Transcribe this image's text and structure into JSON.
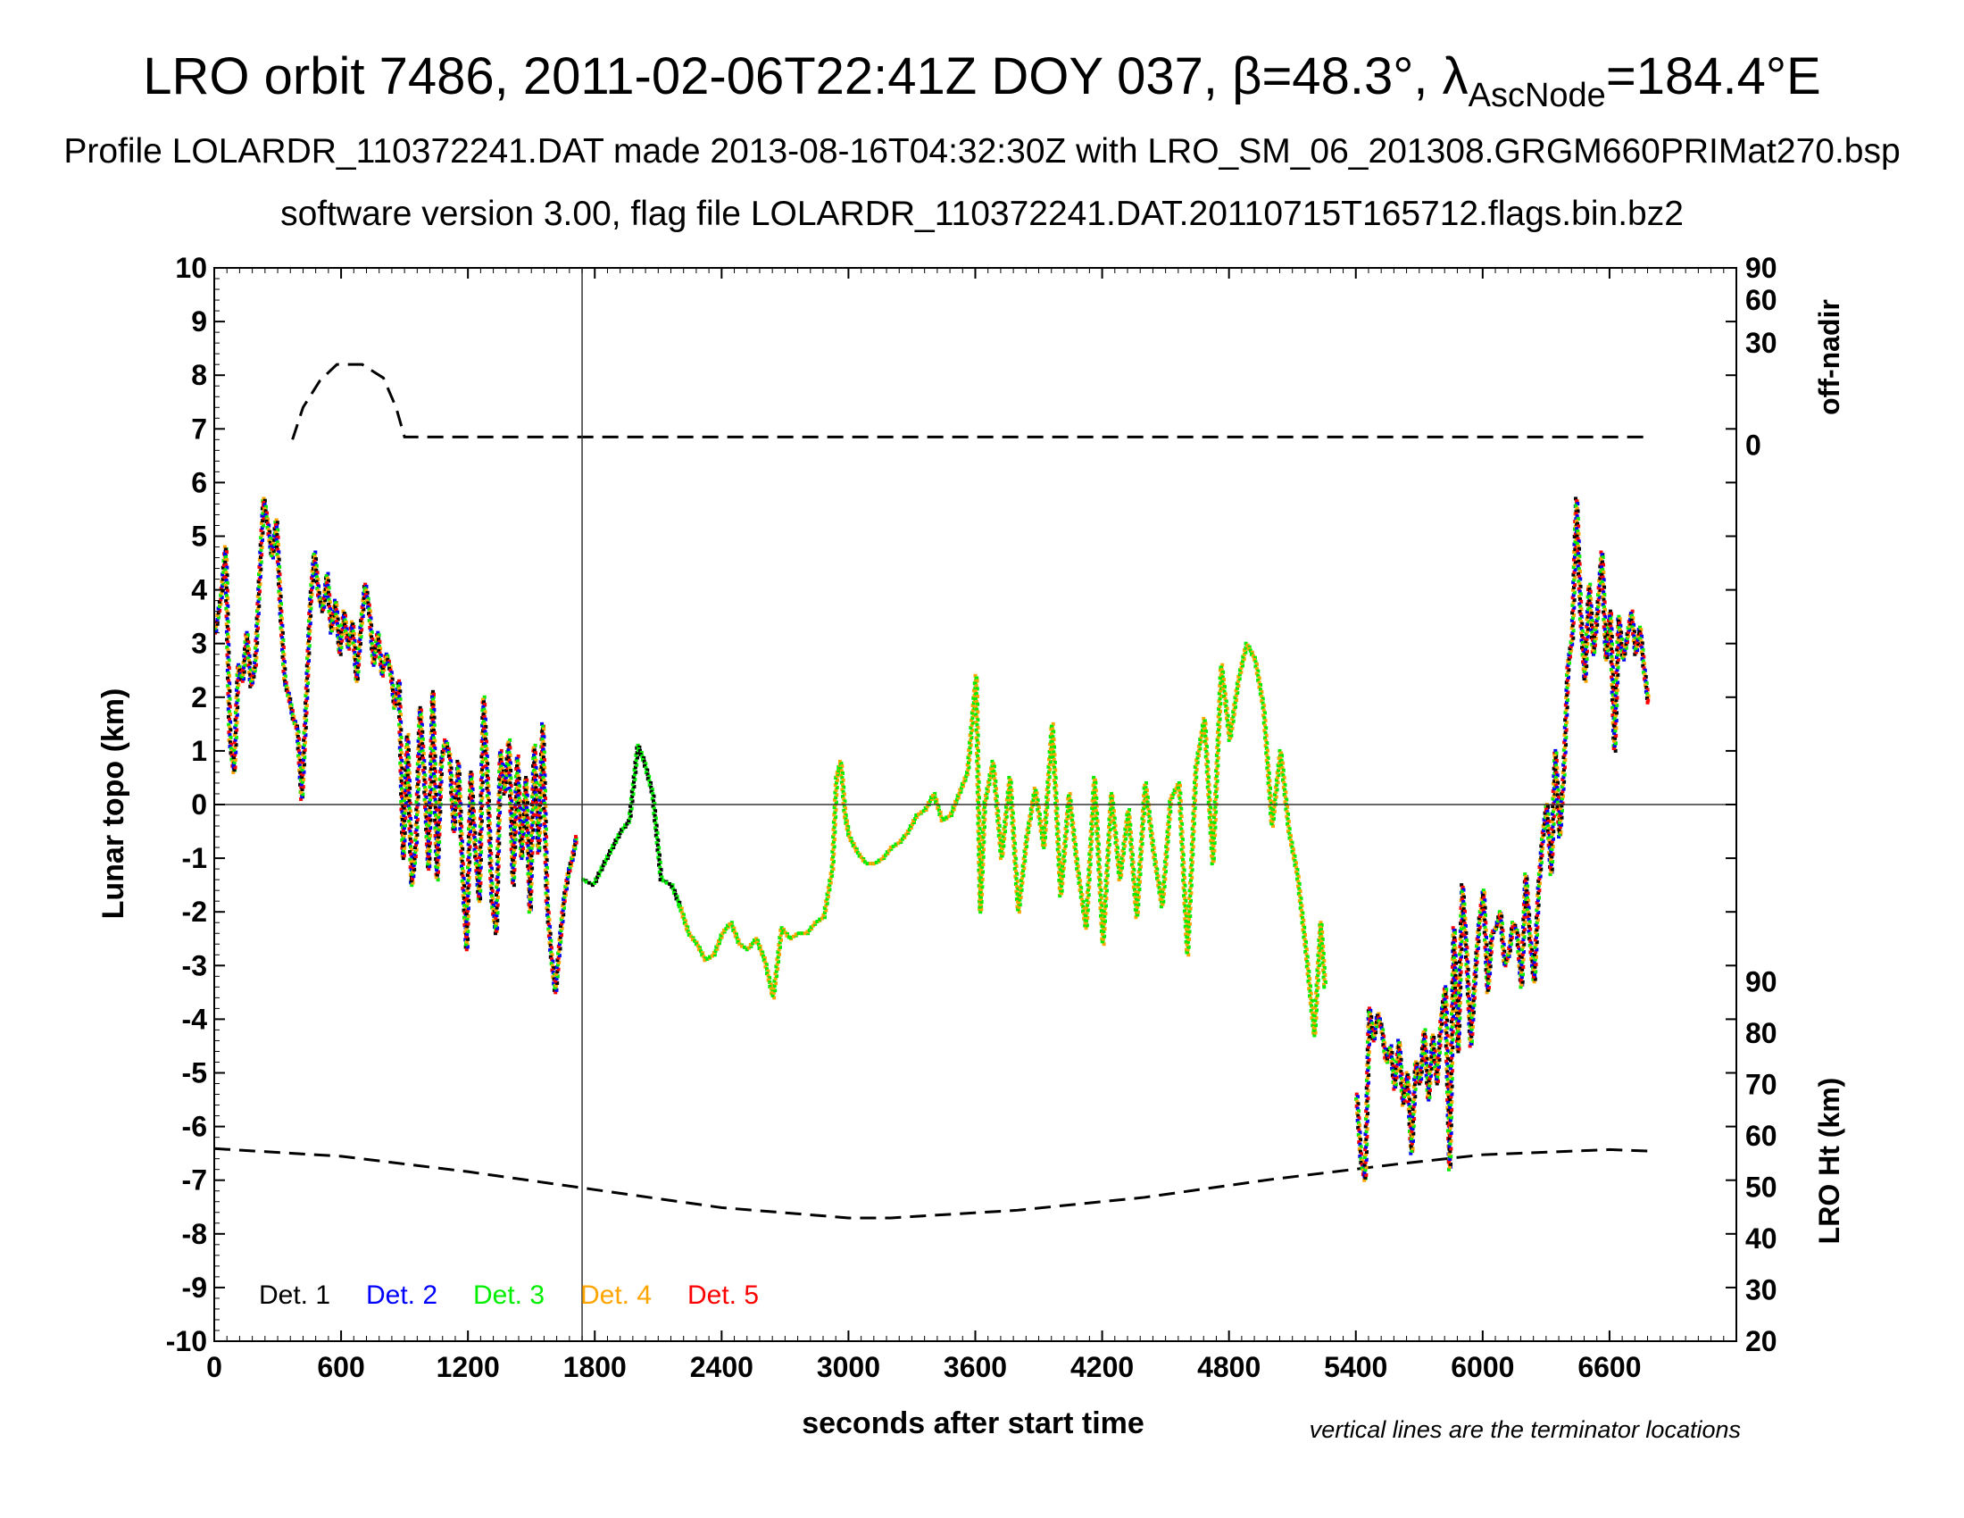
{
  "title": {
    "main_prefix": "LRO orbit 7486, 2011-02-06T22:41Z DOY 037, β=48.3°, λ",
    "main_subscript": "AscNode",
    "main_suffix": "=184.4°E",
    "line2": "Profile LOLARDR_110372241.DAT made 2013-08-16T04:32:30Z with LRO_SM_06_201308.GRGM660PRIMat270.bsp",
    "line3": "software version 3.00, flag file LOLARDR_110372241.DAT.20110715T165712.flags.bin.bz2"
  },
  "axes": {
    "xlabel": "seconds after start time",
    "ylabel_left": "Lunar topo (km)",
    "ylabel_right_top": "off-nadir",
    "ylabel_right_bottom": "LRO Ht (km)",
    "note": "vertical lines are the terminator locations"
  },
  "chart_data": {
    "type": "scatter",
    "xlim": [
      0,
      7200
    ],
    "ylim": [
      -10,
      10
    ],
    "x_ticks": [
      "0",
      "600",
      "1200",
      "1800",
      "2400",
      "3000",
      "3600",
      "4200",
      "4800",
      "5400",
      "6000",
      "6600"
    ],
    "y_ticks": [
      "10",
      "9",
      "8",
      "7",
      "6",
      "5",
      "4",
      "3",
      "2",
      "1",
      "0",
      "-1",
      "-2",
      "-3",
      "-4",
      "-5",
      "-6",
      "-7",
      "-8",
      "-9",
      "-10"
    ],
    "offnadir_ticks": [
      {
        "label": "90",
        "y": 10
      },
      {
        "label": "60",
        "y": 9.4
      },
      {
        "label": "30",
        "y": 8.6
      },
      {
        "label": "0",
        "y": 6.7
      }
    ],
    "ht_ticks": [
      "90",
      "80",
      "70",
      "60",
      "50",
      "40",
      "30",
      "20"
    ],
    "ht_range": [
      20,
      90
    ],
    "ht_y_range": [
      -10,
      -3.3
    ],
    "terminator_x": [
      1740
    ],
    "zero_line": 0,
    "legend_position": "bottom-left",
    "legend": [
      {
        "name": "Det. 1",
        "color": "#000000"
      },
      {
        "name": "Det. 2",
        "color": "#0000ff"
      },
      {
        "name": "Det. 3",
        "color": "#00ee00"
      },
      {
        "name": "Det. 4",
        "color": "#ffa500"
      },
      {
        "name": "Det. 5",
        "color": "#ff0000"
      }
    ],
    "offnadir_trace": [
      [
        370,
        6.8
      ],
      [
        420,
        7.4
      ],
      [
        500,
        7.9
      ],
      [
        580,
        8.2
      ],
      [
        700,
        8.2
      ],
      [
        800,
        7.95
      ],
      [
        860,
        7.4
      ],
      [
        900,
        6.85
      ],
      [
        6800,
        6.85
      ]
    ],
    "lro_ht_trace": [
      [
        0,
        57.5
      ],
      [
        600,
        56
      ],
      [
        1200,
        53
      ],
      [
        1800,
        49.5
      ],
      [
        2400,
        46
      ],
      [
        3000,
        44
      ],
      [
        3200,
        44
      ],
      [
        3800,
        45.5
      ],
      [
        4400,
        48
      ],
      [
        5000,
        51.5
      ],
      [
        5600,
        54.5
      ],
      [
        6000,
        56.3
      ],
      [
        6600,
        57.3
      ],
      [
        6800,
        57
      ]
    ],
    "topo_segments": [
      {
        "name": "main-dense",
        "colors": [
          "#ff0000",
          "#0000ff",
          "#00ee00",
          "#ffa500",
          "#000000"
        ],
        "values": [
          [
            0,
            3.2
          ],
          [
            30,
            3.9
          ],
          [
            50,
            4.8
          ],
          [
            70,
            1.2
          ],
          [
            90,
            0.6
          ],
          [
            110,
            2.6
          ],
          [
            130,
            2.3
          ],
          [
            150,
            3.2
          ],
          [
            170,
            2.2
          ],
          [
            190,
            2.6
          ],
          [
            210,
            4.2
          ],
          [
            230,
            5.7
          ],
          [
            250,
            5.2
          ],
          [
            270,
            4.6
          ],
          [
            290,
            5.3
          ],
          [
            310,
            3.6
          ],
          [
            330,
            2.3
          ],
          [
            350,
            2.0
          ],
          [
            370,
            1.6
          ],
          [
            390,
            1.4
          ],
          [
            410,
            0.1
          ],
          [
            430,
            1.8
          ],
          [
            450,
            3.7
          ],
          [
            470,
            4.7
          ],
          [
            490,
            3.9
          ],
          [
            510,
            3.6
          ],
          [
            530,
            4.3
          ],
          [
            550,
            3.2
          ],
          [
            570,
            3.8
          ],
          [
            590,
            2.8
          ],
          [
            610,
            3.6
          ],
          [
            630,
            2.9
          ],
          [
            650,
            3.4
          ],
          [
            670,
            2.3
          ],
          [
            690,
            3.3
          ],
          [
            710,
            4.1
          ],
          [
            730,
            3.6
          ],
          [
            750,
            2.6
          ],
          [
            770,
            3.2
          ],
          [
            790,
            2.4
          ],
          [
            810,
            2.8
          ],
          [
            830,
            2.5
          ],
          [
            850,
            1.8
          ],
          [
            870,
            2.3
          ],
          [
            890,
            -1.0
          ],
          [
            910,
            1.3
          ],
          [
            930,
            -1.5
          ],
          [
            950,
            -0.8
          ],
          [
            970,
            1.8
          ],
          [
            990,
            0.5
          ],
          [
            1010,
            -1.2
          ],
          [
            1030,
            2.1
          ],
          [
            1050,
            -1.4
          ],
          [
            1070,
            0.8
          ],
          [
            1090,
            1.2
          ],
          [
            1110,
            0.9
          ],
          [
            1130,
            -0.5
          ],
          [
            1150,
            0.8
          ],
          [
            1170,
            -1.2
          ],
          [
            1190,
            -2.7
          ],
          [
            1210,
            0.6
          ],
          [
            1230,
            -0.8
          ],
          [
            1250,
            -1.8
          ],
          [
            1270,
            2.0
          ],
          [
            1290,
            0.3
          ],
          [
            1310,
            -1.8
          ],
          [
            1330,
            -2.4
          ],
          [
            1350,
            1.0
          ],
          [
            1370,
            0.2
          ],
          [
            1390,
            1.2
          ],
          [
            1410,
            -1.5
          ],
          [
            1430,
            0.9
          ],
          [
            1450,
            -1.0
          ],
          [
            1470,
            0.5
          ],
          [
            1490,
            -2.0
          ],
          [
            1510,
            1.1
          ],
          [
            1530,
            -0.9
          ],
          [
            1550,
            1.5
          ],
          [
            1570,
            -1.8
          ],
          [
            1590,
            -2.8
          ],
          [
            1610,
            -3.5
          ],
          [
            1630,
            -2.6
          ],
          [
            1650,
            -1.8
          ],
          [
            1670,
            -1.3
          ],
          [
            1690,
            -1.0
          ],
          [
            1710,
            -0.6
          ]
        ]
      },
      {
        "name": "night",
        "colors": [
          "#00ee00",
          "#000000"
        ],
        "values": [
          [
            1740,
            -1.4
          ],
          [
            1790,
            -1.5
          ],
          [
            1840,
            -1.1
          ],
          [
            1880,
            -0.8
          ],
          [
            1920,
            -0.5
          ],
          [
            1960,
            -0.3
          ],
          [
            2000,
            1.1
          ],
          [
            2030,
            0.8
          ],
          [
            2070,
            0.2
          ],
          [
            2110,
            -1.4
          ],
          [
            2160,
            -1.5
          ],
          [
            2200,
            -1.9
          ]
        ]
      },
      {
        "name": "day-green",
        "colors": [
          "#00ee00",
          "#ffa500"
        ],
        "values": [
          [
            2200,
            -1.9
          ],
          [
            2240,
            -2.4
          ],
          [
            2280,
            -2.6
          ],
          [
            2320,
            -2.9
          ],
          [
            2360,
            -2.8
          ],
          [
            2400,
            -2.4
          ],
          [
            2440,
            -2.2
          ],
          [
            2480,
            -2.6
          ],
          [
            2520,
            -2.7
          ],
          [
            2560,
            -2.5
          ],
          [
            2600,
            -2.9
          ],
          [
            2640,
            -3.6
          ],
          [
            2680,
            -2.3
          ],
          [
            2720,
            -2.5
          ],
          [
            2760,
            -2.4
          ],
          [
            2800,
            -2.4
          ],
          [
            2840,
            -2.2
          ],
          [
            2880,
            -2.1
          ],
          [
            2920,
            -1.2
          ],
          [
            2940,
            0.5
          ],
          [
            2960,
            0.8
          ],
          [
            2980,
            -0.2
          ],
          [
            3000,
            -0.6
          ],
          [
            3040,
            -0.9
          ],
          [
            3080,
            -1.1
          ],
          [
            3120,
            -1.1
          ],
          [
            3160,
            -1.0
          ],
          [
            3200,
            -0.8
          ],
          [
            3240,
            -0.7
          ],
          [
            3280,
            -0.5
          ],
          [
            3320,
            -0.2
          ],
          [
            3360,
            -0.1
          ],
          [
            3400,
            0.2
          ],
          [
            3440,
            -0.3
          ],
          [
            3480,
            -0.2
          ],
          [
            3520,
            0.2
          ],
          [
            3560,
            0.6
          ],
          [
            3600,
            2.4
          ],
          [
            3620,
            -2.0
          ],
          [
            3640,
            0.0
          ],
          [
            3680,
            0.8
          ],
          [
            3720,
            -1.0
          ],
          [
            3760,
            0.5
          ],
          [
            3800,
            -2.0
          ],
          [
            3840,
            -0.6
          ],
          [
            3880,
            0.3
          ],
          [
            3920,
            -0.8
          ],
          [
            3960,
            1.5
          ],
          [
            4000,
            -1.7
          ],
          [
            4040,
            0.2
          ],
          [
            4080,
            -1.2
          ],
          [
            4120,
            -2.3
          ],
          [
            4160,
            0.5
          ],
          [
            4200,
            -2.6
          ],
          [
            4240,
            0.2
          ],
          [
            4280,
            -1.4
          ],
          [
            4320,
            -0.1
          ],
          [
            4360,
            -2.1
          ],
          [
            4400,
            0.4
          ],
          [
            4440,
            -0.9
          ],
          [
            4480,
            -1.9
          ],
          [
            4520,
            0.1
          ],
          [
            4560,
            0.4
          ],
          [
            4600,
            -2.8
          ],
          [
            4640,
            0.7
          ],
          [
            4680,
            1.6
          ],
          [
            4720,
            -1.1
          ],
          [
            4760,
            2.6
          ],
          [
            4800,
            1.2
          ],
          [
            4840,
            2.3
          ],
          [
            4880,
            3.0
          ],
          [
            4920,
            2.7
          ],
          [
            4960,
            1.8
          ],
          [
            5000,
            -0.4
          ],
          [
            5040,
            1.0
          ],
          [
            5080,
            -0.5
          ],
          [
            5120,
            -1.3
          ],
          [
            5160,
            -2.7
          ],
          [
            5200,
            -4.3
          ],
          [
            5230,
            -2.2
          ],
          [
            5250,
            -3.4
          ]
        ]
      },
      {
        "name": "late-dense",
        "colors": [
          "#ff0000",
          "#0000ff",
          "#00ee00",
          "#ffa500",
          "#000000"
        ],
        "values": [
          [
            5400,
            -5.4
          ],
          [
            5420,
            -6.6
          ],
          [
            5440,
            -7.0
          ],
          [
            5460,
            -3.8
          ],
          [
            5480,
            -4.4
          ],
          [
            5500,
            -3.9
          ],
          [
            5520,
            -4.2
          ],
          [
            5540,
            -4.8
          ],
          [
            5560,
            -4.5
          ],
          [
            5580,
            -5.3
          ],
          [
            5600,
            -4.4
          ],
          [
            5620,
            -5.6
          ],
          [
            5640,
            -5.0
          ],
          [
            5660,
            -6.5
          ],
          [
            5680,
            -4.8
          ],
          [
            5700,
            -5.2
          ],
          [
            5720,
            -4.2
          ],
          [
            5740,
            -5.5
          ],
          [
            5760,
            -4.3
          ],
          [
            5780,
            -5.2
          ],
          [
            5800,
            -4.0
          ],
          [
            5820,
            -3.4
          ],
          [
            5840,
            -6.8
          ],
          [
            5860,
            -2.3
          ],
          [
            5880,
            -4.6
          ],
          [
            5900,
            -1.5
          ],
          [
            5920,
            -2.8
          ],
          [
            5940,
            -4.5
          ],
          [
            5960,
            -3.2
          ],
          [
            5980,
            -2.2
          ],
          [
            6000,
            -1.6
          ],
          [
            6020,
            -3.5
          ],
          [
            6040,
            -2.4
          ],
          [
            6060,
            -2.3
          ],
          [
            6080,
            -2.0
          ],
          [
            6100,
            -3.0
          ],
          [
            6120,
            -2.8
          ],
          [
            6140,
            -2.2
          ],
          [
            6160,
            -2.4
          ],
          [
            6180,
            -3.4
          ],
          [
            6200,
            -1.3
          ],
          [
            6220,
            -2.5
          ],
          [
            6240,
            -3.3
          ],
          [
            6260,
            -1.6
          ],
          [
            6280,
            -0.6
          ],
          [
            6300,
            0.0
          ],
          [
            6320,
            -1.3
          ],
          [
            6340,
            1.0
          ],
          [
            6360,
            -0.6
          ],
          [
            6380,
            0.6
          ],
          [
            6400,
            2.6
          ],
          [
            6420,
            3.1
          ],
          [
            6440,
            5.7
          ],
          [
            6460,
            3.5
          ],
          [
            6480,
            2.3
          ],
          [
            6500,
            4.1
          ],
          [
            6520,
            2.8
          ],
          [
            6540,
            3.6
          ],
          [
            6560,
            4.7
          ],
          [
            6580,
            2.7
          ],
          [
            6600,
            3.6
          ],
          [
            6620,
            1.0
          ],
          [
            6640,
            3.5
          ],
          [
            6660,
            2.7
          ],
          [
            6680,
            3.1
          ],
          [
            6700,
            3.6
          ],
          [
            6720,
            2.8
          ],
          [
            6740,
            3.3
          ],
          [
            6760,
            2.5
          ],
          [
            6780,
            1.9
          ]
        ]
      }
    ]
  }
}
